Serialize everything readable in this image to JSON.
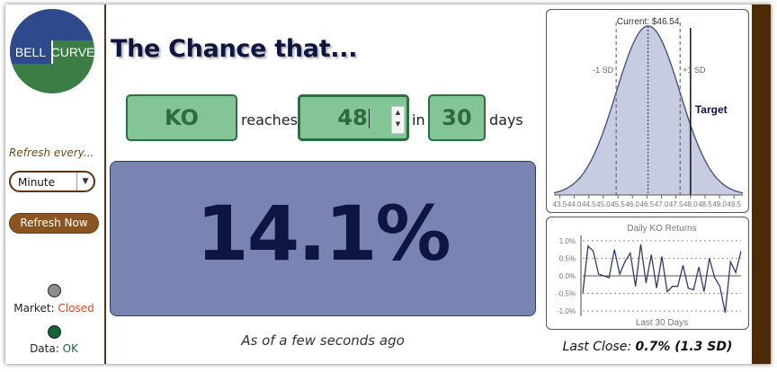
{
  "logo": {
    "left": "BELL",
    "right": "CURVE",
    "colors": {
      "blue": "#2e4a8d",
      "green": "#3a7e46"
    }
  },
  "sidebar": {
    "refresh_label": "Refresh every...",
    "refresh_select": "Minute",
    "refresh_button": "Refresh Now",
    "market_label": "Market:",
    "market_value": "Closed",
    "data_label": "Data:",
    "data_value": "OK"
  },
  "main": {
    "title": "The Chance that...",
    "ticker": "KO",
    "reaches_word": "reaches",
    "target": "48",
    "in_word": "in",
    "days_value": "30",
    "days_word": "days",
    "probability": "14.1%",
    "as_of": "As of a few seconds ago"
  },
  "bell_chart": {
    "current_label": "Current: $46.54",
    "minus_sd_label": "-1 SD",
    "plus_sd_label": "+1 SD",
    "target_label": "Target",
    "x_ticks": [
      "43.5",
      "44.0",
      "44.5",
      "45.0",
      "45.5",
      "46.0",
      "46.5",
      "47.0",
      "47.5",
      "48.0",
      "48.5",
      "49.0",
      "49.5"
    ]
  },
  "returns_chart": {
    "title": "Daily KO Returns",
    "xlabel": "Last 30 Days",
    "y_ticks": [
      "1.0%",
      "0.5%",
      "0.0%",
      "-0.5%",
      "-1.0%"
    ]
  },
  "last_close": {
    "label": "Last Close:",
    "value": "0.7% (1.3 SD)"
  },
  "chart_data": [
    {
      "type": "area",
      "title": "",
      "x_range": [
        43.3,
        49.8
      ],
      "mean": 46.54,
      "sd": 1.1,
      "minus_sd": 45.44,
      "plus_sd": 47.64,
      "target": 48,
      "x_ticks": [
        43.5,
        44.0,
        44.5,
        45.0,
        45.5,
        46.0,
        46.5,
        47.0,
        47.5,
        48.0,
        48.5,
        49.0,
        49.5
      ],
      "colors": {
        "fill": "#c8cce0",
        "line": "#3e4a82"
      }
    },
    {
      "type": "line",
      "title": "Daily KO Returns",
      "xlabel": "Last 30 Days",
      "ylim": [
        -1.1,
        1.1
      ],
      "y_ticks": [
        1.0,
        0.5,
        0.0,
        -0.5,
        -1.0
      ],
      "series": [
        {
          "values": [
            -0.5,
            0.85,
            0.7,
            0.05,
            0.0,
            -0.05,
            0.75,
            0.05,
            0.4,
            0.65,
            -0.3,
            0.9,
            -0.2,
            0.6,
            -0.35,
            0.55,
            -0.45,
            -0.3,
            -0.3,
            0.3,
            -0.35,
            -0.4,
            0.25,
            -0.45,
            0.5,
            -0.05,
            -0.3,
            -1.05,
            0.4,
            0.1,
            0.7
          ]
        }
      ],
      "colors": {
        "line": "#2d3a78"
      }
    }
  ]
}
